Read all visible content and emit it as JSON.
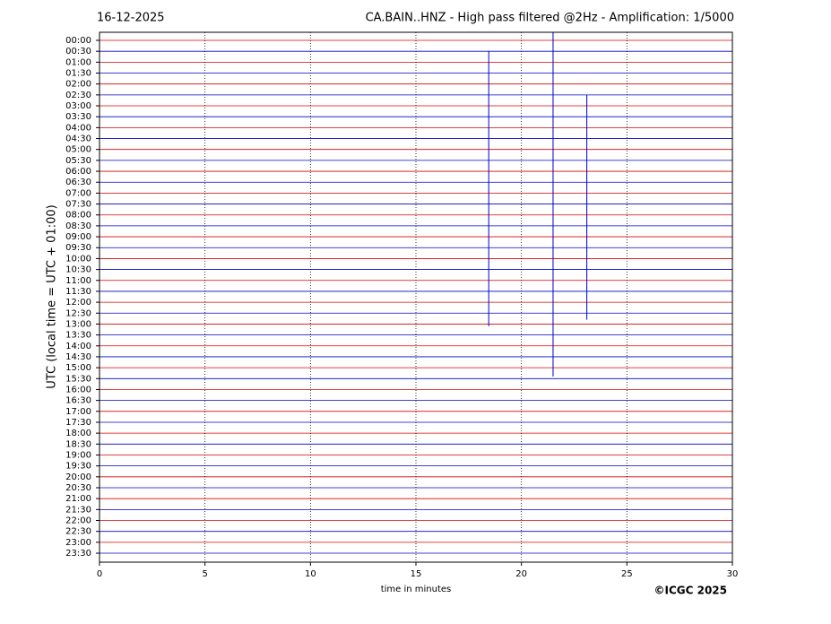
{
  "chart_data": {
    "type": "helicorder",
    "date": "16-12-2025",
    "title": "CA.BAIN..HNZ - High pass filtered @2Hz - Amplification: 1/5000",
    "ylabel": "UTC (local time = UTC + 01:00)",
    "xlabel": "time in minutes",
    "credit": "©ICGC 2025",
    "xlim": [
      0,
      30
    ],
    "xticks": [
      0,
      5,
      10,
      15,
      20,
      25,
      30
    ],
    "grid": true,
    "ylim": [
      -0.37,
      23.91
    ],
    "inverted": true,
    "trace_colors": [
      "#dd0000",
      "#0000cc"
    ],
    "yticks": [
      {
        "value": 0,
        "label": "00:00"
      },
      {
        "value": 0.5,
        "label": "00:30"
      },
      {
        "value": 1,
        "label": "01:00"
      },
      {
        "value": 1.5,
        "label": "01:30"
      },
      {
        "value": 2,
        "label": "02:00"
      },
      {
        "value": 2.5,
        "label": "02:30"
      },
      {
        "value": 3,
        "label": "03:00"
      },
      {
        "value": 3.5,
        "label": "03:30"
      },
      {
        "value": 4,
        "label": "04:00"
      },
      {
        "value": 4.5,
        "label": "04:30"
      },
      {
        "value": 5,
        "label": "05:00"
      },
      {
        "value": 5.5,
        "label": "05:30"
      },
      {
        "value": 6,
        "label": "06:00"
      },
      {
        "value": 6.5,
        "label": "06:30"
      },
      {
        "value": 7,
        "label": "07:00"
      },
      {
        "value": 7.5,
        "label": "07:30"
      },
      {
        "value": 8,
        "label": "08:00"
      },
      {
        "value": 8.5,
        "label": "08:30"
      },
      {
        "value": 9,
        "label": "09:00"
      },
      {
        "value": 9.5,
        "label": "09:30"
      },
      {
        "value": 10,
        "label": "10:00"
      },
      {
        "value": 10.5,
        "label": "10:30"
      },
      {
        "value": 11,
        "label": "11:00"
      },
      {
        "value": 11.5,
        "label": "11:30"
      },
      {
        "value": 12,
        "label": "12:00"
      },
      {
        "value": 12.5,
        "label": "12:30"
      },
      {
        "value": 13,
        "label": "13:00"
      },
      {
        "value": 13.5,
        "label": "13:30"
      },
      {
        "value": 14,
        "label": "14:00"
      },
      {
        "value": 14.5,
        "label": "14:30"
      },
      {
        "value": 15,
        "label": "15:00"
      },
      {
        "value": 15.5,
        "label": "15:30"
      },
      {
        "value": 16,
        "label": "16:00"
      },
      {
        "value": 16.5,
        "label": "16:30"
      },
      {
        "value": 17,
        "label": "17:00"
      },
      {
        "value": 17.5,
        "label": "17:30"
      },
      {
        "value": 18,
        "label": "18:00"
      },
      {
        "value": 18.5,
        "label": "18:30"
      },
      {
        "value": 19,
        "label": "19:00"
      },
      {
        "value": 19.5,
        "label": "19:30"
      },
      {
        "value": 20,
        "label": "20:00"
      },
      {
        "value": 20.5,
        "label": "20:30"
      },
      {
        "value": 21,
        "label": "21:00"
      },
      {
        "value": 21.5,
        "label": "21:30"
      },
      {
        "value": 22,
        "label": "22:00"
      },
      {
        "value": 22.5,
        "label": "22:30"
      },
      {
        "value": 23,
        "label": "23:00"
      },
      {
        "value": 23.5,
        "label": "23:30"
      }
    ],
    "events": [
      {
        "x": 18.45,
        "y": [
          0.5,
          13.1
        ],
        "color": "#0000cc"
      },
      {
        "x": 21.5,
        "y": [
          -0.37,
          15.4
        ],
        "color": "#0000cc"
      },
      {
        "x": 23.1,
        "y": [
          2.5,
          12.8
        ],
        "color": "#0000cc"
      }
    ]
  }
}
